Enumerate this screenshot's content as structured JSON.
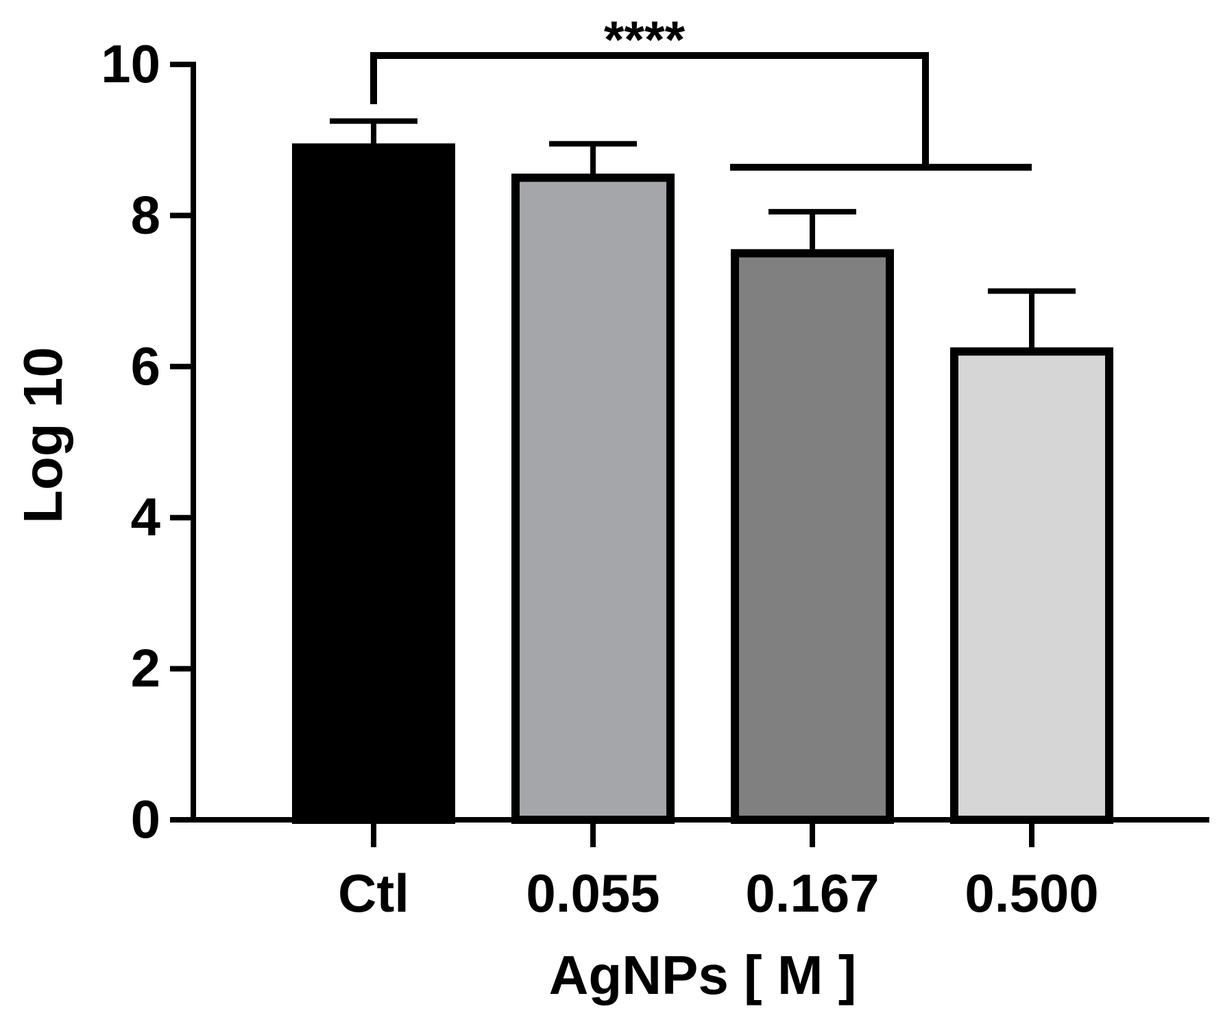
{
  "chart_data": {
    "type": "bar",
    "title": "",
    "xlabel": "AgNPs [ M ]",
    "ylabel": "Log 10",
    "categories": [
      "Ctl",
      "0.055",
      "0.167",
      "0.500"
    ],
    "values": [
      8.9,
      8.5,
      7.5,
      6.2
    ],
    "errors": [
      0.35,
      0.45,
      0.55,
      0.8
    ],
    "ylim": [
      0,
      10
    ],
    "yticks": [
      0,
      2,
      4,
      6,
      8,
      10
    ],
    "colors": [
      "#000000",
      "#a5a6aa",
      "#808080",
      "#d6d6d6"
    ],
    "grid": false,
    "legend": "none",
    "annotation": {
      "text": "****",
      "from_category": "Ctl",
      "to_categories": [
        "0.167",
        "0.500"
      ]
    }
  }
}
